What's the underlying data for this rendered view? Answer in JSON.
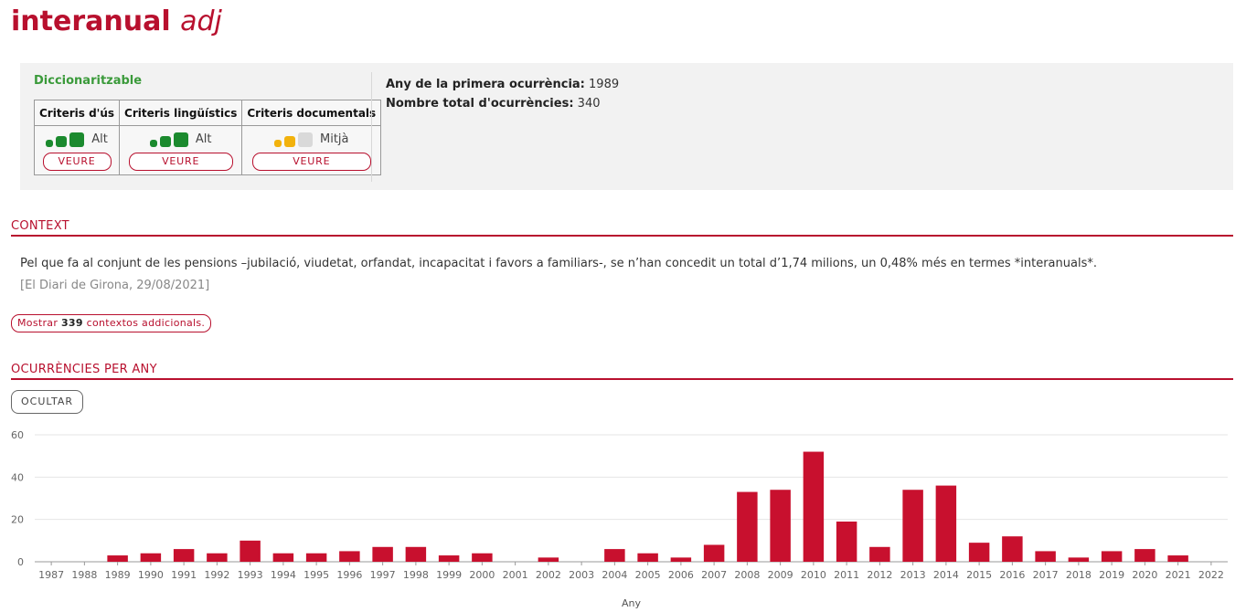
{
  "header": {
    "term": "interanual",
    "pos": "adj"
  },
  "info": {
    "status": "Diccionaritzable",
    "criteria": [
      {
        "name": "Criteris d'ús",
        "level": "Alt",
        "filled": 3,
        "color": "#1b8a2e",
        "button": "VEURE"
      },
      {
        "name": "Criteris lingüístics",
        "level": "Alt",
        "filled": 3,
        "color": "#1b8a2e",
        "button": "VEURE"
      },
      {
        "name": "Criteris documentals",
        "level": "Mitjà",
        "filled": 2,
        "color": "#f2b20c",
        "button": "VEURE"
      }
    ],
    "first_year_label": "Any de la primera ocurrència:",
    "first_year": "1989",
    "total_label": "Nombre total d'ocurrències:",
    "total": "340"
  },
  "context": {
    "heading": "CONTEXT",
    "text": "Pel que fa al conjunt de les pensions –jubilació, viudetat, orfandat, incapacitat i favors a familiars-, se n’han concedit un total d’1,74 milions, un 0,48% més en termes *interanuals*.",
    "source": "[El Diari de Girona, 29/08/2021]",
    "more_prefix": "Mostrar",
    "more_count": "339",
    "more_suffix": "contextos addicionals."
  },
  "occurrences": {
    "heading": "OCURRÈNCIES PER ANY",
    "hide_button": "OCULTAR"
  },
  "chart_data": {
    "type": "bar",
    "categories": [
      "1987",
      "1988",
      "1989",
      "1990",
      "1991",
      "1992",
      "1993",
      "1994",
      "1995",
      "1996",
      "1997",
      "1998",
      "1999",
      "2000",
      "2001",
      "2002",
      "2003",
      "2004",
      "2005",
      "2006",
      "2007",
      "2008",
      "2009",
      "2010",
      "2011",
      "2012",
      "2013",
      "2014",
      "2015",
      "2016",
      "2017",
      "2018",
      "2019",
      "2020",
      "2021",
      "2022"
    ],
    "values": [
      0,
      0,
      3,
      4,
      6,
      4,
      10,
      4,
      4,
      5,
      7,
      7,
      3,
      4,
      0,
      2,
      0,
      6,
      4,
      2,
      8,
      33,
      34,
      52,
      19,
      7,
      34,
      36,
      9,
      12,
      5,
      2,
      5,
      6,
      3,
      0
    ],
    "xlabel": "Any",
    "ylabel": "",
    "ylim": [
      0,
      60
    ],
    "yticks": [
      0,
      20,
      40,
      60
    ],
    "bar_color": "#c8102e",
    "grid": true
  }
}
